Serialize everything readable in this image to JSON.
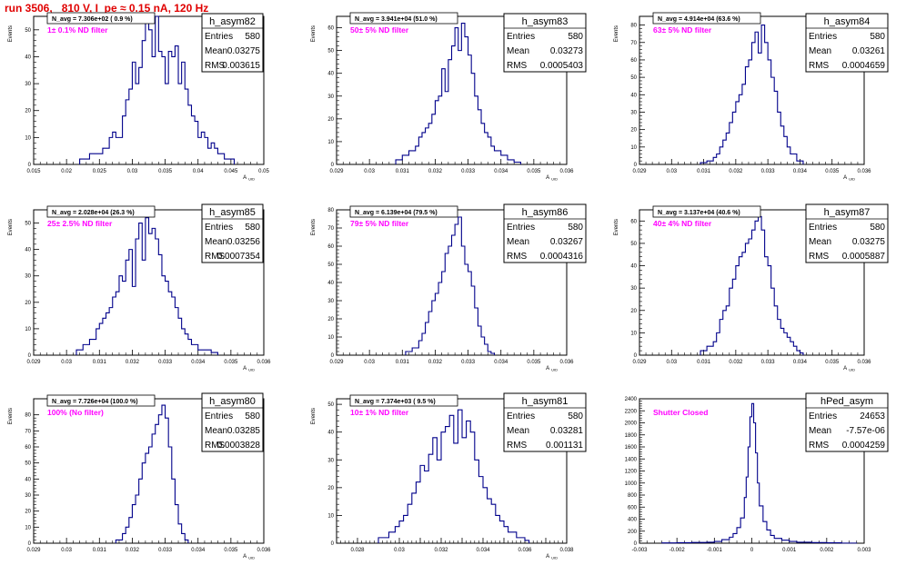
{
  "header": {
    "title": "run 3506,   810 V, I_pe ≈ 0.15 nA, 120 Hz"
  },
  "stat_labels": {
    "entries": "Entries",
    "mean": "Mean",
    "rms": "RMS"
  },
  "chart_data": [
    {
      "type": "histogram",
      "name": "h_asym82",
      "title": "N_avg = 7.306e+02 ( 0.9 %)",
      "annotation": "1± 0.1% ND filter",
      "xlabel": "A_UID",
      "ylabel": "Events",
      "xlim": [
        0.015,
        0.05
      ],
      "ylim": [
        0,
        55
      ],
      "xticks": [
        0.015,
        0.02,
        0.025,
        0.03,
        0.035,
        0.04,
        0.045,
        0.05
      ],
      "xtick_labels": [
        "0.015",
        "0.02",
        "0.025",
        "0.03",
        "0.035",
        "0.04",
        "0.045",
        "0.05"
      ],
      "yticks": [
        0,
        10,
        20,
        30,
        40,
        50
      ],
      "ytick_labels": [
        "0",
        "10",
        "20",
        "30",
        "40",
        "50"
      ],
      "stats": {
        "entries": "580",
        "mean": "0.03275",
        "rms": "0.003615"
      },
      "bins": {
        "x": [
          0.022,
          0.0235,
          0.025,
          0.0255,
          0.026,
          0.0265,
          0.027,
          0.0275,
          0.028,
          0.0285,
          0.029,
          0.0295,
          0.03,
          0.0305,
          0.031,
          0.0315,
          0.032,
          0.0325,
          0.033,
          0.0335,
          0.034,
          0.0345,
          0.035,
          0.0355,
          0.036,
          0.0365,
          0.037,
          0.0375,
          0.038,
          0.0385,
          0.039,
          0.0395,
          0.04,
          0.0405,
          0.041,
          0.0415,
          0.042,
          0.0425,
          0.043,
          0.0435,
          0.044,
          0.0445,
          0.045
        ],
        "y": [
          2,
          4,
          4,
          6,
          6,
          10,
          12,
          10,
          10,
          18,
          24,
          28,
          38,
          30,
          36,
          46,
          56,
          50,
          40,
          56,
          42,
          40,
          30,
          42,
          40,
          44,
          30,
          38,
          28,
          22,
          18,
          16,
          10,
          12,
          10,
          6,
          8,
          6,
          4,
          4,
          2,
          2,
          2
        ]
      }
    },
    {
      "type": "histogram",
      "name": "h_asym83",
      "title": "N_avg = 3.941e+04 (51.0 %)",
      "annotation": "50± 5% ND filter",
      "xlabel": "A_UID",
      "ylabel": "Events",
      "xlim": [
        0.029,
        0.036
      ],
      "ylim": [
        0,
        65
      ],
      "xticks": [
        0.029,
        0.03,
        0.031,
        0.032,
        0.033,
        0.034,
        0.035,
        0.036
      ],
      "xtick_labels": [
        "0.029",
        "0.03",
        "0.031",
        "0.032",
        "0.033",
        "0.034",
        "0.035",
        "0.036"
      ],
      "yticks": [
        0,
        10,
        20,
        30,
        40,
        50,
        60
      ],
      "ytick_labels": [
        "0",
        "10",
        "20",
        "30",
        "40",
        "50",
        "60"
      ],
      "stats": {
        "entries": "580",
        "mean": "0.03273",
        "rms": "0.0005403"
      },
      "bins": {
        "x": [
          0.0308,
          0.031,
          0.0312,
          0.0314,
          0.0315,
          0.0316,
          0.0317,
          0.0318,
          0.0319,
          0.032,
          0.0321,
          0.0322,
          0.0323,
          0.0324,
          0.0325,
          0.0326,
          0.0327,
          0.0328,
          0.0329,
          0.033,
          0.0331,
          0.0332,
          0.0333,
          0.0334,
          0.0335,
          0.0336,
          0.0337,
          0.0338,
          0.034,
          0.0342,
          0.0344
        ],
        "y": [
          2,
          4,
          6,
          8,
          12,
          14,
          16,
          18,
          22,
          28,
          30,
          42,
          32,
          46,
          52,
          60,
          50,
          62,
          56,
          48,
          40,
          30,
          24,
          18,
          14,
          12,
          8,
          6,
          4,
          2,
          1
        ]
      }
    },
    {
      "type": "histogram",
      "name": "h_asym84",
      "title": "N_avg = 4.914e+04 (63.6 %)",
      "annotation": "63± 5% ND filter",
      "xlabel": "A_UID",
      "ylabel": "Events",
      "xlim": [
        0.029,
        0.036
      ],
      "ylim": [
        0,
        85
      ],
      "xticks": [
        0.029,
        0.03,
        0.031,
        0.032,
        0.033,
        0.034,
        0.035,
        0.036
      ],
      "xtick_labels": [
        "0.029",
        "0.03",
        "0.031",
        "0.032",
        "0.033",
        "0.034",
        "0.035",
        "0.036"
      ],
      "yticks": [
        0,
        10,
        20,
        30,
        40,
        50,
        60,
        70,
        80
      ],
      "ytick_labels": [
        "0",
        "10",
        "20",
        "30",
        "40",
        "50",
        "60",
        "70",
        "80"
      ],
      "stats": {
        "entries": "580",
        "mean": "0.03261",
        "rms": "0.0004659"
      },
      "bins": {
        "x": [
          0.0309,
          0.0311,
          0.0313,
          0.0314,
          0.0315,
          0.0316,
          0.0317,
          0.0318,
          0.0319,
          0.032,
          0.0321,
          0.0322,
          0.0323,
          0.0324,
          0.0325,
          0.0326,
          0.0327,
          0.0328,
          0.0329,
          0.033,
          0.0331,
          0.0332,
          0.0333,
          0.0334,
          0.0335,
          0.0336,
          0.0337,
          0.0339
        ],
        "y": [
          1,
          2,
          4,
          6,
          10,
          14,
          18,
          24,
          30,
          36,
          40,
          46,
          56,
          60,
          70,
          76,
          64,
          80,
          70,
          60,
          50,
          42,
          30,
          22,
          16,
          10,
          6,
          2
        ]
      }
    },
    {
      "type": "histogram",
      "name": "h_asym85",
      "title": "N_avg = 2.028e+04 (26.3 %)",
      "annotation": "25± 2.5% ND filter",
      "xlabel": "A_UID",
      "ylabel": "Events",
      "xlim": [
        0.029,
        0.036
      ],
      "ylim": [
        0,
        55
      ],
      "xticks": [
        0.029,
        0.03,
        0.031,
        0.032,
        0.033,
        0.034,
        0.035,
        0.036
      ],
      "xtick_labels": [
        "0.029",
        "0.03",
        "0.031",
        "0.032",
        "0.033",
        "0.034",
        "0.035",
        "0.036"
      ],
      "yticks": [
        0,
        10,
        20,
        30,
        40,
        50
      ],
      "ytick_labels": [
        "0",
        "10",
        "20",
        "30",
        "40",
        "50"
      ],
      "stats": {
        "entries": "580",
        "mean": "0.03256",
        "rms": "0.0007354"
      },
      "bins": {
        "x": [
          0.0303,
          0.0305,
          0.0307,
          0.0309,
          0.031,
          0.0311,
          0.0312,
          0.0313,
          0.0314,
          0.0315,
          0.0316,
          0.0317,
          0.0318,
          0.0319,
          0.032,
          0.0321,
          0.0322,
          0.0323,
          0.0324,
          0.0325,
          0.0326,
          0.0327,
          0.0328,
          0.0329,
          0.033,
          0.0331,
          0.0332,
          0.0333,
          0.0334,
          0.0335,
          0.0336,
          0.0337,
          0.0338,
          0.034,
          0.0342,
          0.0344
        ],
        "y": [
          2,
          4,
          6,
          10,
          12,
          14,
          16,
          18,
          22,
          24,
          30,
          28,
          36,
          40,
          26,
          44,
          50,
          36,
          52,
          46,
          48,
          44,
          38,
          30,
          28,
          24,
          22,
          18,
          14,
          10,
          8,
          6,
          4,
          2,
          2,
          1
        ]
      }
    },
    {
      "type": "histogram",
      "name": "h_asym86",
      "title": "N_avg = 6.139e+04 (79.5 %)",
      "annotation": "79± 5% ND filter",
      "xlabel": "A_UID",
      "ylabel": "Events",
      "xlim": [
        0.029,
        0.036
      ],
      "ylim": [
        0,
        80
      ],
      "xticks": [
        0.029,
        0.03,
        0.031,
        0.032,
        0.033,
        0.034,
        0.035,
        0.036
      ],
      "xtick_labels": [
        "0.029",
        "0.03",
        "0.031",
        "0.032",
        "0.033",
        "0.034",
        "0.035",
        "0.036"
      ],
      "yticks": [
        0,
        10,
        20,
        30,
        40,
        50,
        60,
        70,
        80
      ],
      "ytick_labels": [
        "0",
        "10",
        "20",
        "30",
        "40",
        "50",
        "60",
        "70",
        "80"
      ],
      "stats": {
        "entries": "580",
        "mean": "0.03267",
        "rms": "0.0004316"
      },
      "bins": {
        "x": [
          0.0311,
          0.0313,
          0.0315,
          0.0316,
          0.0317,
          0.0318,
          0.0319,
          0.032,
          0.0321,
          0.0322,
          0.0323,
          0.0324,
          0.0325,
          0.0326,
          0.0327,
          0.0328,
          0.0329,
          0.033,
          0.0331,
          0.0332,
          0.0333,
          0.0334,
          0.0335,
          0.0336,
          0.0337
        ],
        "y": [
          2,
          4,
          8,
          12,
          18,
          24,
          30,
          34,
          40,
          46,
          56,
          60,
          66,
          72,
          76,
          60,
          50,
          46,
          38,
          26,
          16,
          10,
          6,
          2,
          1
        ]
      }
    },
    {
      "type": "histogram",
      "name": "h_asym87",
      "title": "N_avg = 3.137e+04 (40.6 %)",
      "annotation": "40± 4% ND filter",
      "xlabel": "A_UID",
      "ylabel": "Events",
      "xlim": [
        0.029,
        0.036
      ],
      "ylim": [
        0,
        65
      ],
      "xticks": [
        0.029,
        0.03,
        0.031,
        0.032,
        0.033,
        0.034,
        0.035,
        0.036
      ],
      "xtick_labels": [
        "0.029",
        "0.03",
        "0.031",
        "0.032",
        "0.033",
        "0.034",
        "0.035",
        "0.036"
      ],
      "yticks": [
        0,
        10,
        20,
        30,
        40,
        50,
        60
      ],
      "ytick_labels": [
        "0",
        "10",
        "20",
        "30",
        "40",
        "50",
        "60"
      ],
      "stats": {
        "entries": "580",
        "mean": "0.03275",
        "rms": "0.0005887"
      },
      "bins": {
        "x": [
          0.0309,
          0.0311,
          0.0313,
          0.0314,
          0.0315,
          0.0316,
          0.0317,
          0.0318,
          0.0319,
          0.032,
          0.0321,
          0.0322,
          0.0323,
          0.0324,
          0.0325,
          0.0326,
          0.0327,
          0.0328,
          0.0329,
          0.033,
          0.0331,
          0.0332,
          0.0333,
          0.0334,
          0.0335,
          0.0336,
          0.0337,
          0.0338,
          0.0339,
          0.034
        ],
        "y": [
          2,
          4,
          6,
          10,
          16,
          20,
          22,
          30,
          34,
          40,
          44,
          46,
          50,
          52,
          56,
          60,
          62,
          56,
          44,
          40,
          30,
          22,
          16,
          12,
          10,
          8,
          6,
          4,
          2,
          1
        ]
      }
    },
    {
      "type": "histogram",
      "name": "h_asym80",
      "title": "N_avg = 7.726e+04 (100.0 %)",
      "annotation": "100% (No filter)",
      "xlabel": "A_UID",
      "ylabel": "Events",
      "xlim": [
        0.029,
        0.036
      ],
      "ylim": [
        0,
        90
      ],
      "xticks": [
        0.029,
        0.03,
        0.031,
        0.032,
        0.033,
        0.034,
        0.035,
        0.036
      ],
      "xtick_labels": [
        "0.029",
        "0.03",
        "0.031",
        "0.032",
        "0.033",
        "0.034",
        "0.035",
        "0.036"
      ],
      "yticks": [
        0,
        10,
        20,
        30,
        40,
        50,
        60,
        70,
        80
      ],
      "ytick_labels": [
        "0",
        "10",
        "20",
        "30",
        "40",
        "50",
        "60",
        "70",
        "80"
      ],
      "stats": {
        "entries": "580",
        "mean": "0.03285",
        "rms": "0.0003828"
      },
      "bins": {
        "x": [
          0.0315,
          0.0317,
          0.0318,
          0.0319,
          0.032,
          0.0321,
          0.0322,
          0.0323,
          0.0324,
          0.0325,
          0.0326,
          0.0327,
          0.0328,
          0.0329,
          0.033,
          0.0331,
          0.0332,
          0.0333,
          0.0334,
          0.0335,
          0.0336
        ],
        "y": [
          2,
          6,
          10,
          16,
          24,
          30,
          40,
          50,
          56,
          60,
          68,
          74,
          80,
          86,
          78,
          60,
          40,
          24,
          12,
          6,
          2
        ]
      }
    },
    {
      "type": "histogram",
      "name": "h_asym81",
      "title": "N_avg = 7.374e+03 ( 9.5 %)",
      "annotation": "10± 1% ND filter",
      "xlabel": "A_UID",
      "ylabel": "Events",
      "xlim": [
        0.027,
        0.038
      ],
      "ylim": [
        0,
        52
      ],
      "xticks": [
        0.027,
        0.028,
        0.029,
        0.03,
        0.031,
        0.032,
        0.033,
        0.034,
        0.035,
        0.036,
        0.037,
        0.038
      ],
      "xtick_labels": [
        "",
        "0.028",
        "",
        "0.03",
        "",
        "0.032",
        "",
        "0.034",
        "",
        "0.036",
        "",
        "0.038"
      ],
      "yticks": [
        0,
        10,
        20,
        30,
        40,
        50
      ],
      "ytick_labels": [
        "0",
        "10",
        "20",
        "30",
        "40",
        "50"
      ],
      "stats": {
        "entries": "580",
        "mean": "0.03281",
        "rms": "0.001131"
      },
      "bins": {
        "x": [
          0.029,
          0.0295,
          0.0298,
          0.03,
          0.0302,
          0.0304,
          0.0306,
          0.0308,
          0.031,
          0.0312,
          0.0314,
          0.0316,
          0.0318,
          0.032,
          0.0322,
          0.0324,
          0.0326,
          0.0328,
          0.033,
          0.0332,
          0.0334,
          0.0336,
          0.0338,
          0.034,
          0.0342,
          0.0344,
          0.0346,
          0.0348,
          0.035,
          0.0352,
          0.0354,
          0.0356,
          0.0358,
          0.036
        ],
        "y": [
          2,
          4,
          6,
          8,
          10,
          14,
          18,
          22,
          28,
          26,
          32,
          38,
          30,
          40,
          42,
          46,
          36,
          48,
          38,
          44,
          40,
          30,
          24,
          20,
          16,
          14,
          10,
          8,
          6,
          4,
          4,
          2,
          2,
          1
        ]
      }
    },
    {
      "type": "histogram",
      "name": "hPed_asym",
      "title": "",
      "annotation": "Shutter Closed",
      "xlabel": "",
      "ylabel": "",
      "xlim": [
        -0.003,
        0.003
      ],
      "ylim": [
        0,
        2400
      ],
      "xticks": [
        -0.003,
        -0.002,
        -0.001,
        0,
        0.001,
        0.002,
        0.003
      ],
      "xtick_labels": [
        "-0.003",
        "-0.002",
        "-0.001",
        "0",
        "0.001",
        "0.002",
        "0.003"
      ],
      "yticks": [
        0,
        200,
        400,
        600,
        800,
        1000,
        1200,
        1400,
        1600,
        1800,
        2000,
        2200,
        2400
      ],
      "ytick_labels": [
        "0",
        "200",
        "400",
        "600",
        "800",
        "1000",
        "1200",
        "1400",
        "1600",
        "1800",
        "2000",
        "2200",
        "2400"
      ],
      "stats": {
        "entries": "24653",
        "mean": "-7.57e-06",
        "rms": "0.0004259"
      },
      "bins": {
        "x": [
          -0.0024,
          -0.002,
          -0.0016,
          -0.0012,
          -0.001,
          -0.0008,
          -0.0006,
          -0.0005,
          -0.0004,
          -0.0003,
          -0.0002,
          -0.00015,
          -0.0001,
          -5e-05,
          0,
          5e-05,
          0.0001,
          0.00015,
          0.0002,
          0.0003,
          0.0004,
          0.0005,
          0.0006,
          0.0008,
          0.001,
          0.0012,
          0.0016,
          0.002,
          0.0024
        ],
        "y": [
          4,
          8,
          12,
          16,
          30,
          60,
          100,
          160,
          260,
          420,
          760,
          1100,
          1600,
          2100,
          2320,
          2000,
          1500,
          1000,
          620,
          360,
          220,
          130,
          80,
          50,
          30,
          16,
          10,
          6,
          2
        ]
      }
    }
  ]
}
